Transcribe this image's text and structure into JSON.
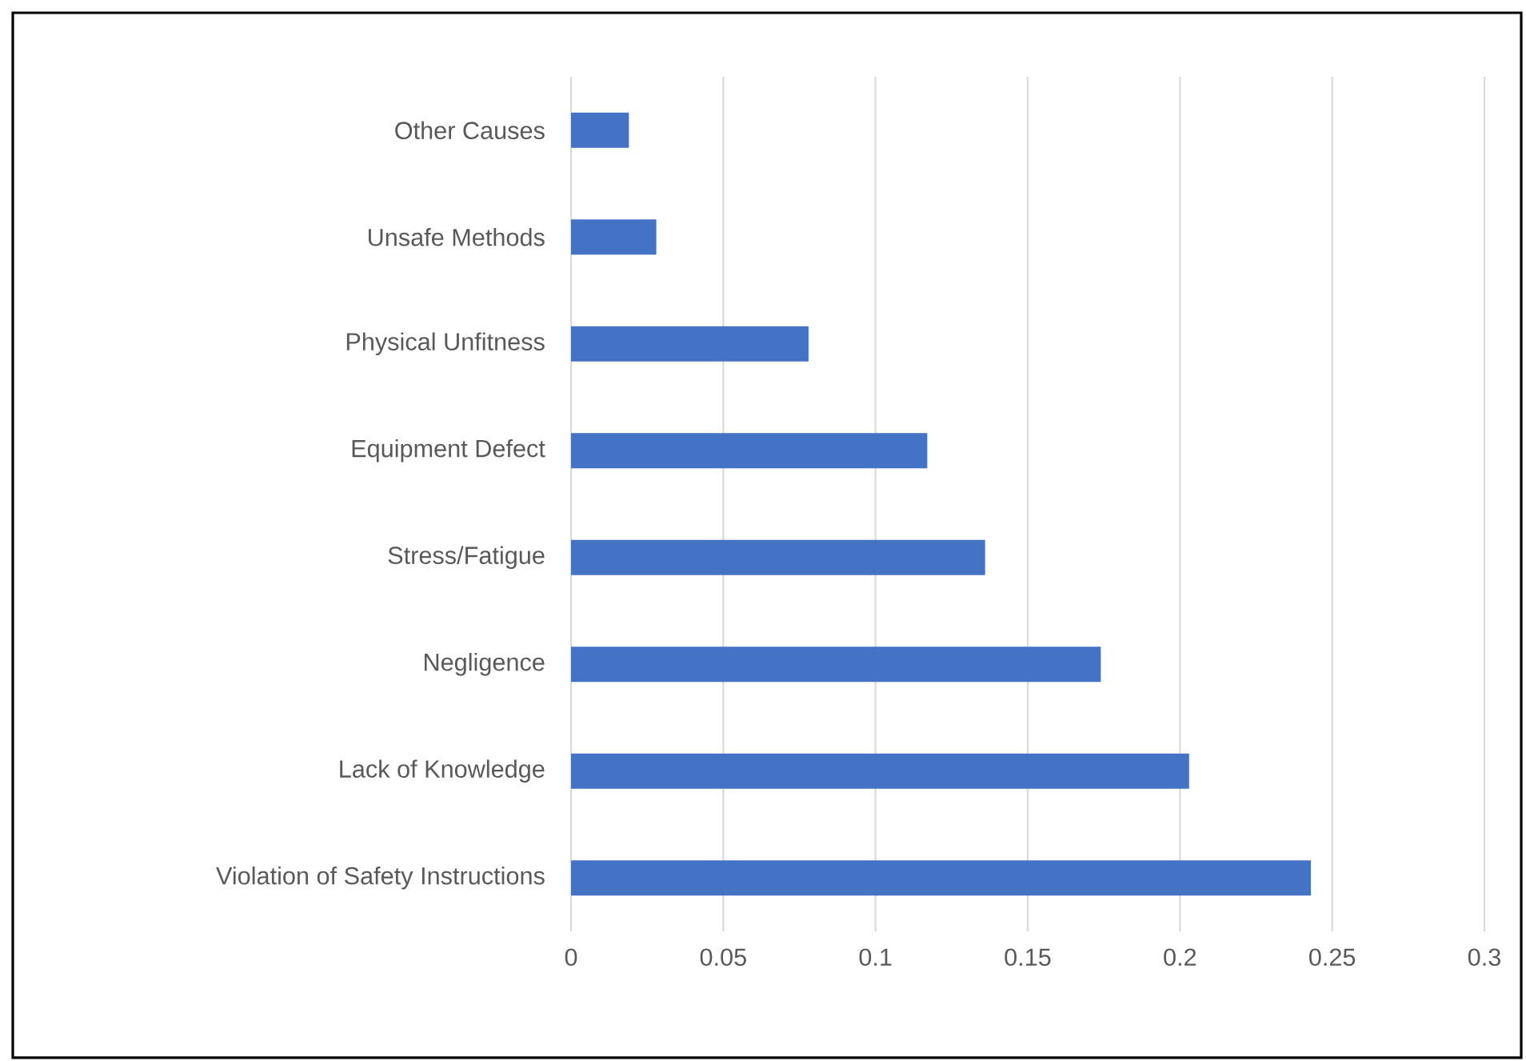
{
  "chart_data": {
    "type": "bar",
    "orientation": "horizontal",
    "categories": [
      "Other Causes",
      "Unsafe Methods",
      "Physical Unfitness",
      "Equipment Defect",
      "Stress/Fatigue",
      "Negligence",
      "Lack of Knowledge",
      "Violation of Safety Instructions"
    ],
    "values": [
      0.019,
      0.028,
      0.078,
      0.117,
      0.136,
      0.174,
      0.203,
      0.243
    ],
    "color": "#4472c4",
    "xlim": [
      0,
      0.3
    ],
    "xticks": [
      0,
      0.05,
      0.1,
      0.15,
      0.2,
      0.25,
      0.3
    ],
    "grid": "x"
  }
}
